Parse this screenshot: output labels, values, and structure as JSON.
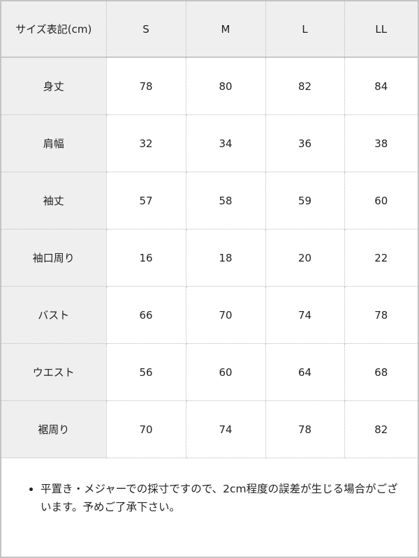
{
  "table": {
    "header": [
      "サイズ表記(cm)",
      "S",
      "M",
      "L",
      "LL"
    ],
    "rows": [
      {
        "label": "身丈",
        "values": [
          "78",
          "80",
          "82",
          "84"
        ]
      },
      {
        "label": "肩幅",
        "values": [
          "32",
          "34",
          "36",
          "38"
        ]
      },
      {
        "label": "袖丈",
        "values": [
          "57",
          "58",
          "59",
          "60"
        ]
      },
      {
        "label": "袖口周り",
        "values": [
          "16",
          "18",
          "20",
          "22"
        ]
      },
      {
        "label": "バスト",
        "values": [
          "66",
          "70",
          "74",
          "78"
        ]
      },
      {
        "label": "ウエスト",
        "values": [
          "56",
          "60",
          "64",
          "68"
        ]
      },
      {
        "label": "裾周り",
        "values": [
          "70",
          "74",
          "78",
          "82"
        ]
      }
    ]
  },
  "notes": [
    "平置き・メジャーでの採寸ですので、2cm程度の誤差が生じる場合がございます。予めご了承下さい。"
  ]
}
